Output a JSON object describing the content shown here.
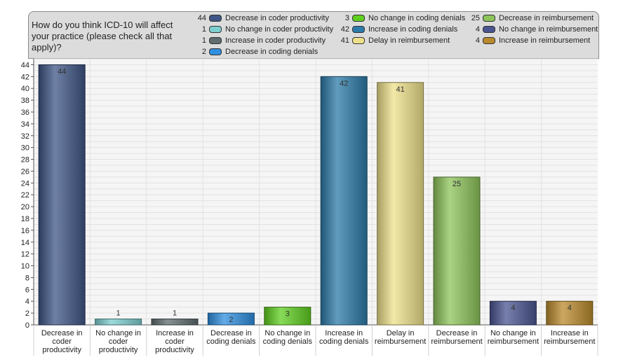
{
  "chart_data": {
    "type": "bar",
    "title": "How do you think ICD-10 will affect your practice (please check all that apply)?",
    "categories": [
      "Decrease in coder productivity",
      "No change in coder productivity",
      "Increase in coder productivity",
      "Decrease in coding denials",
      "No change in coding denials",
      "Increase in coding denials",
      "Delay in reimbursement",
      "Decrease in reimbursement",
      "No change in reimbursement",
      "Increase in reimbursement"
    ],
    "values": [
      44,
      1,
      1,
      2,
      3,
      42,
      41,
      25,
      4,
      4
    ],
    "colors": [
      "#3e5585",
      "#7ecfd1",
      "#5f6c70",
      "#2f8fe0",
      "#5fcf20",
      "#2c7ba8",
      "#ede08a",
      "#8dc45a",
      "#4a5590",
      "#b98a2c"
    ],
    "ylim": [
      0,
      45
    ],
    "yticks": [
      0,
      2,
      4,
      6,
      8,
      10,
      12,
      14,
      16,
      18,
      20,
      22,
      24,
      26,
      28,
      30,
      32,
      34,
      36,
      38,
      40,
      42,
      44
    ],
    "grid": true,
    "legend_position": "top",
    "xlabel": "",
    "ylabel": ""
  },
  "legend": [
    {
      "count": "44",
      "label": "Decrease in coder productivity",
      "color": "#3e5585"
    },
    {
      "count": "1",
      "label": "No change in coder productivity",
      "color": "#7ecfd1"
    },
    {
      "count": "1",
      "label": "Increase in coder productivity",
      "color": "#5f6c70"
    },
    {
      "count": "2",
      "label": "Decrease in coding denials",
      "color": "#2f8fe0"
    },
    {
      "count": "3",
      "label": "No change in coding denials",
      "color": "#5fcf20"
    },
    {
      "count": "42",
      "label": "Increase in coding denials",
      "color": "#2c7ba8"
    },
    {
      "count": "41",
      "label": "Delay in reimbursement",
      "color": "#ede08a"
    },
    {
      "count": "25",
      "label": "Decrease in reimbursement",
      "color": "#8dc45a"
    },
    {
      "count": "4",
      "label": "No change in reimbursement",
      "color": "#4a5590"
    },
    {
      "count": "4",
      "label": "Increase in reimbursement",
      "color": "#b98a2c"
    }
  ],
  "xlabels": [
    [
      "Decrease in",
      "coder",
      "productivity"
    ],
    [
      "No change in",
      "coder",
      "productivity"
    ],
    [
      "Increase in",
      "coder",
      "productivity"
    ],
    [
      "Decrease in",
      "coding denials"
    ],
    [
      "No change in",
      "coding denials"
    ],
    [
      "Increase in",
      "coding denials"
    ],
    [
      "Delay in",
      "reimbursement"
    ],
    [
      "Decrease in",
      "reimbursement"
    ],
    [
      "No change in",
      "reimbursement"
    ],
    [
      "Increase in",
      "reimbursement"
    ]
  ]
}
